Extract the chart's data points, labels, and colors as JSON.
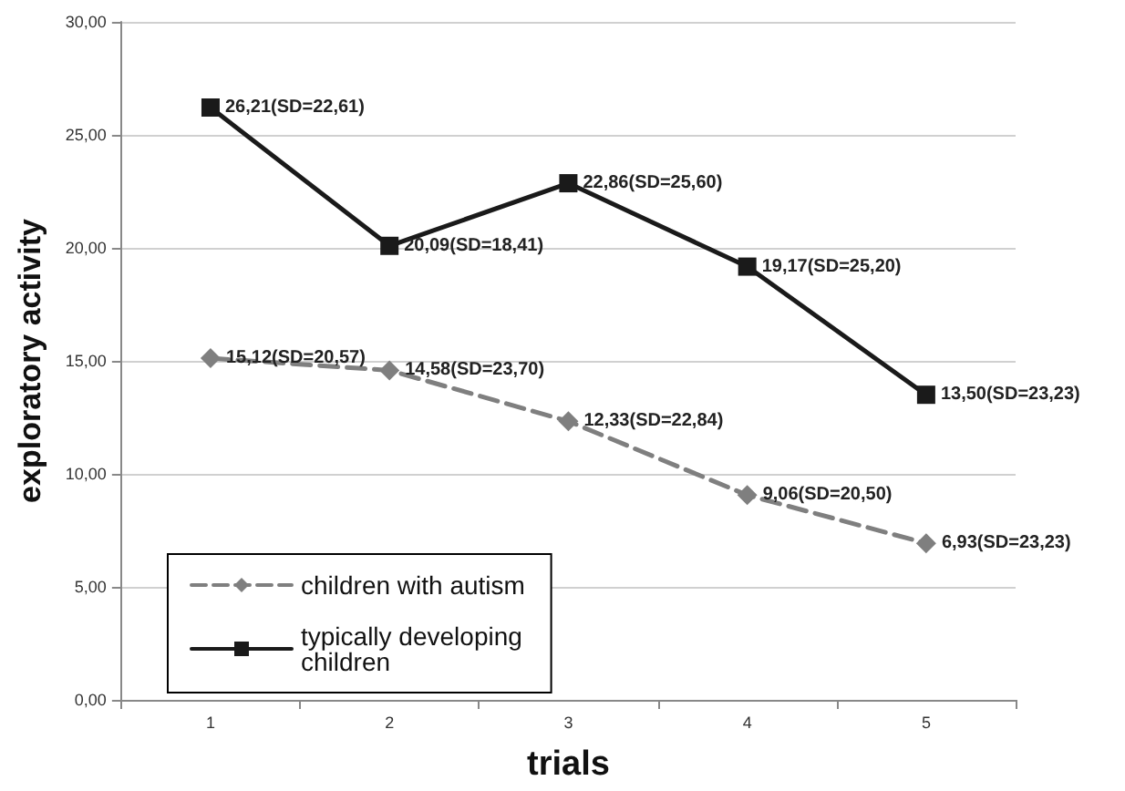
{
  "chart_data": {
    "type": "line",
    "xlabel": "trials",
    "ylabel": "exploratory activity",
    "categories": [
      "1",
      "2",
      "3",
      "4",
      "5"
    ],
    "series": [
      {
        "name": "children with autism",
        "color": "#7f7f7f",
        "marker": "diamond",
        "line_style": "dashed",
        "values": [
          15.12,
          14.58,
          12.33,
          9.06,
          6.93
        ],
        "value_labels": [
          "15,12(SD=20,57)",
          "14,58(SD=23,70)",
          "12,33(SD=22,84)",
          "9,06(SD=20,50)",
          "6,93(SD=23,23)"
        ]
      },
      {
        "name": "typically developing children",
        "color": "#1a1a1a",
        "marker": "square",
        "line_style": "solid",
        "values": [
          26.21,
          20.09,
          22.86,
          19.17,
          13.5
        ],
        "value_labels": [
          "26,21(SD=22,61)",
          "20,09(SD=18,41)",
          "22,86(SD=25,60)",
          "19,17(SD=25,20)",
          "13,50(SD=23,23)"
        ]
      }
    ],
    "ylim": [
      0,
      30
    ],
    "yticks": [
      {
        "value": 0,
        "label": "0,00"
      },
      {
        "value": 5,
        "label": "5,00"
      },
      {
        "value": 10,
        "label": "10,00"
      },
      {
        "value": 15,
        "label": "15,00"
      },
      {
        "value": 20,
        "label": "20,00"
      },
      {
        "value": 25,
        "label": "25,00"
      },
      {
        "value": 30,
        "label": "30,00"
      }
    ],
    "grid": "y",
    "legend": "bottom left"
  }
}
